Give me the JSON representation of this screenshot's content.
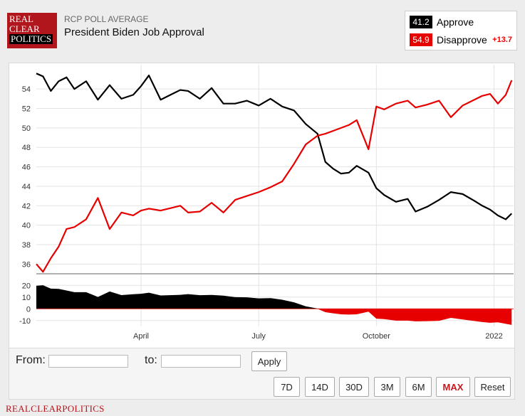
{
  "header": {
    "logo_lines": [
      "REAL",
      "CLEAR",
      "POLITICS"
    ],
    "supertitle": "RCP POLL AVERAGE",
    "title": "President Biden Job Approval"
  },
  "legend": {
    "approve_value": "41.2",
    "approve_label": "Approve",
    "disapprove_value": "54.9",
    "disapprove_label": "Disapprove",
    "spread": "+13.7"
  },
  "colors": {
    "approve": "#000000",
    "disapprove": "#e60000",
    "grid": "#e3e3e3",
    "divider": "#999999"
  },
  "chart_data": [
    {
      "type": "line",
      "title": "President Biden Job Approval",
      "xlabel": "",
      "ylabel": "",
      "x_tick_labels": [
        "April",
        "July",
        "October",
        "2022"
      ],
      "x_tick_positions_month_index": [
        2.0,
        5.0,
        8.0,
        11.0
      ],
      "x_range_month_index": [
        -0.67,
        11.5
      ],
      "ylim": [
        35,
        56.5
      ],
      "y_ticks": [
        36,
        38,
        40,
        42,
        44,
        46,
        48,
        50,
        52,
        54
      ],
      "grid": true,
      "series": [
        {
          "name": "Approve",
          "color": "#000000",
          "x": [
            -0.67,
            -0.5,
            -0.3,
            -0.1,
            0.1,
            0.3,
            0.6,
            0.9,
            1.2,
            1.5,
            1.8,
            2.0,
            2.2,
            2.5,
            2.8,
            3.0,
            3.2,
            3.5,
            3.8,
            4.1,
            4.4,
            4.7,
            5.0,
            5.3,
            5.6,
            5.9,
            6.2,
            6.5,
            6.7,
            6.9,
            7.1,
            7.3,
            7.5,
            7.8,
            8.0,
            8.2,
            8.5,
            8.8,
            9.0,
            9.3,
            9.6,
            9.9,
            10.2,
            10.5,
            10.7,
            10.9,
            11.1,
            11.3,
            11.45
          ],
          "y": [
            55.6,
            55.3,
            53.8,
            54.8,
            55.2,
            54.0,
            54.8,
            52.9,
            54.4,
            53.0,
            53.4,
            54.3,
            55.4,
            52.9,
            53.5,
            53.9,
            53.8,
            53.0,
            54.1,
            52.5,
            52.5,
            52.8,
            52.3,
            53.0,
            52.2,
            51.8,
            50.4,
            49.4,
            46.5,
            45.8,
            45.3,
            45.4,
            46.1,
            45.4,
            43.8,
            43.1,
            42.4,
            42.7,
            41.4,
            41.9,
            42.6,
            43.4,
            43.2,
            42.5,
            42.0,
            41.6,
            41.0,
            40.6,
            41.2
          ]
        },
        {
          "name": "Disapprove",
          "color": "#e60000",
          "x": [
            -0.67,
            -0.5,
            -0.3,
            -0.1,
            0.1,
            0.3,
            0.6,
            0.9,
            1.2,
            1.5,
            1.8,
            2.0,
            2.2,
            2.5,
            2.8,
            3.0,
            3.2,
            3.5,
            3.8,
            4.1,
            4.4,
            4.7,
            5.0,
            5.3,
            5.6,
            5.9,
            6.2,
            6.5,
            6.7,
            6.9,
            7.1,
            7.3,
            7.5,
            7.8,
            8.0,
            8.2,
            8.5,
            8.8,
            9.0,
            9.3,
            9.6,
            9.9,
            10.2,
            10.5,
            10.7,
            10.9,
            11.1,
            11.3,
            11.45
          ],
          "y": [
            36.0,
            35.2,
            36.6,
            37.8,
            39.6,
            39.8,
            40.6,
            42.8,
            39.6,
            41.3,
            41.0,
            41.5,
            41.7,
            41.5,
            41.8,
            42.0,
            41.3,
            41.4,
            42.3,
            41.3,
            42.6,
            43.0,
            43.4,
            43.9,
            44.5,
            46.3,
            48.3,
            49.2,
            49.4,
            49.7,
            50.0,
            50.3,
            50.8,
            47.8,
            52.2,
            51.9,
            52.5,
            52.8,
            52.1,
            52.4,
            52.8,
            51.1,
            52.3,
            52.9,
            53.3,
            53.5,
            52.5,
            53.4,
            54.9
          ]
        }
      ]
    },
    {
      "type": "area",
      "title": "",
      "ylim": [
        -15,
        25
      ],
      "y_ticks": [
        -10,
        0,
        10,
        20
      ],
      "series": [
        {
          "name": "Spread",
          "x": [
            -0.67,
            -0.5,
            -0.3,
            -0.1,
            0.1,
            0.3,
            0.6,
            0.9,
            1.2,
            1.5,
            1.8,
            2.0,
            2.2,
            2.5,
            2.8,
            3.0,
            3.2,
            3.5,
            3.8,
            4.1,
            4.4,
            4.7,
            5.0,
            5.3,
            5.6,
            5.9,
            6.2,
            6.5,
            6.7,
            6.9,
            7.1,
            7.3,
            7.5,
            7.8,
            8.0,
            8.2,
            8.5,
            8.8,
            9.0,
            9.3,
            9.6,
            9.9,
            10.2,
            10.5,
            10.7,
            10.9,
            11.1,
            11.3,
            11.45
          ],
          "y": [
            19.6,
            20.1,
            17.2,
            17.0,
            15.6,
            14.2,
            14.2,
            10.1,
            14.8,
            11.7,
            12.4,
            12.8,
            13.7,
            11.4,
            11.7,
            11.9,
            12.5,
            11.6,
            11.8,
            11.2,
            9.9,
            9.8,
            8.9,
            9.1,
            7.7,
            5.5,
            2.1,
            0.2,
            -2.9,
            -3.9,
            -4.7,
            -4.9,
            -4.7,
            -2.4,
            -8.4,
            -8.8,
            -10.1,
            -10.1,
            -10.7,
            -10.5,
            -10.2,
            -7.7,
            -9.1,
            -10.4,
            -11.3,
            -11.9,
            -11.5,
            -12.8,
            -13.7
          ]
        }
      ]
    }
  ],
  "controls": {
    "from_label": "From:",
    "to_label": "to:",
    "from_value": "",
    "to_value": "",
    "apply_label": "Apply",
    "range_buttons": [
      "7D",
      "14D",
      "30D",
      "3M",
      "6M",
      "MAX",
      "Reset"
    ],
    "active_range": "MAX"
  },
  "footer": {
    "text": "REALCLEARPOLITICS"
  }
}
